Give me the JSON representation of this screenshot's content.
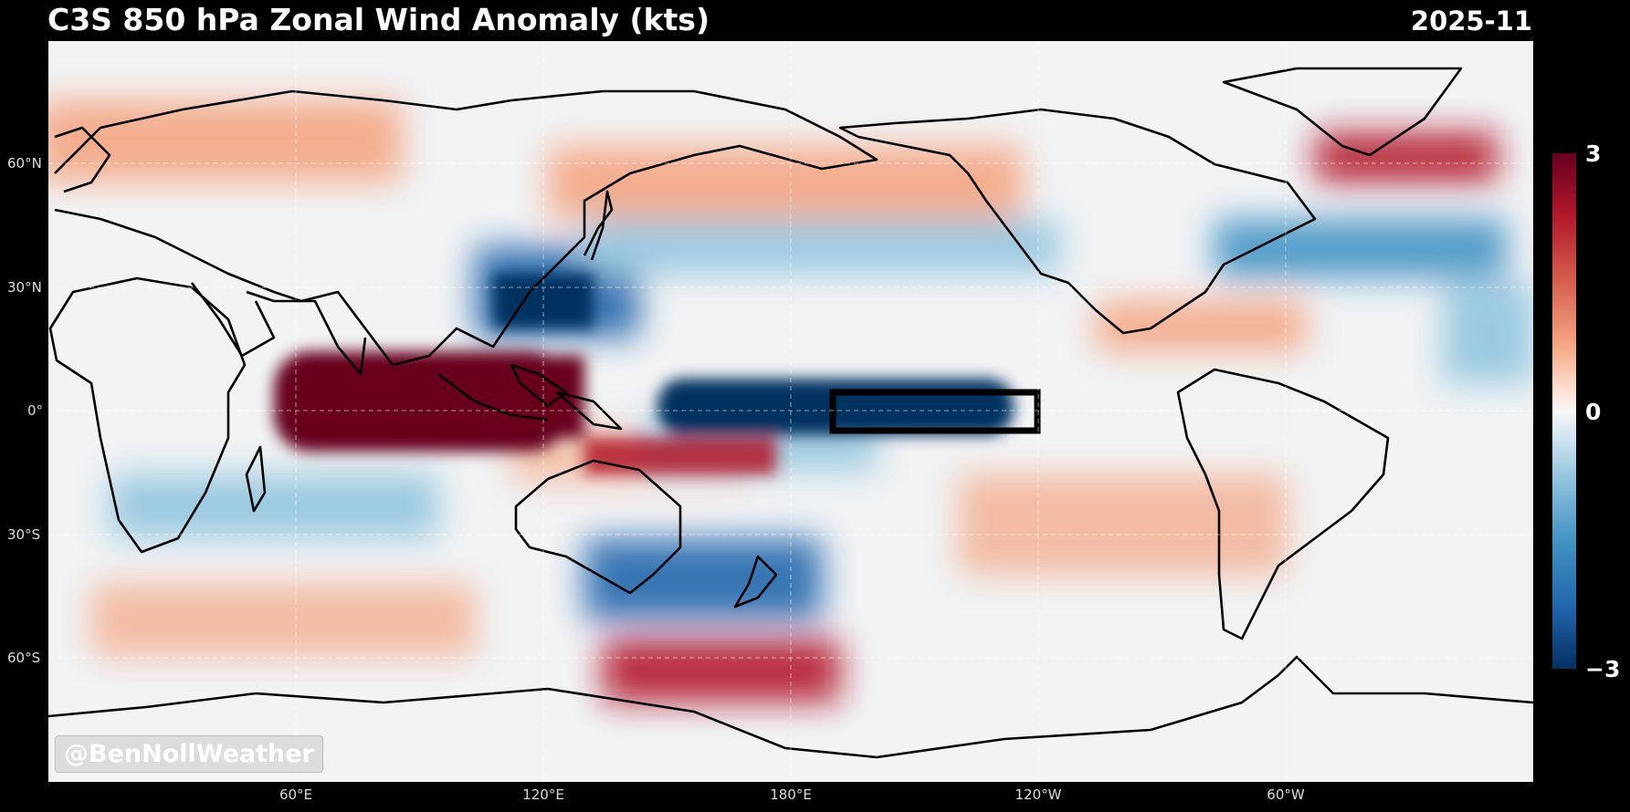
{
  "header": {
    "title": "C3S 850 hPa Zonal Wind Anomaly (kts)",
    "date": "2025-11"
  },
  "axes": {
    "lat_labels": [
      "60°N",
      "30°N",
      "0°",
      "30°S",
      "60°S"
    ],
    "lon_labels": [
      "60°E",
      "120°E",
      "180°E",
      "120°W",
      "60°W"
    ]
  },
  "colorbar": {
    "max_label": "3",
    "mid_label": "0",
    "min_label": "−3",
    "colormap": "RdBu_r"
  },
  "watermark": "@BenNollWeather",
  "colors": {
    "positive": "#67001f",
    "negative": "#053061",
    "neutral": "#f7f7f7"
  }
}
